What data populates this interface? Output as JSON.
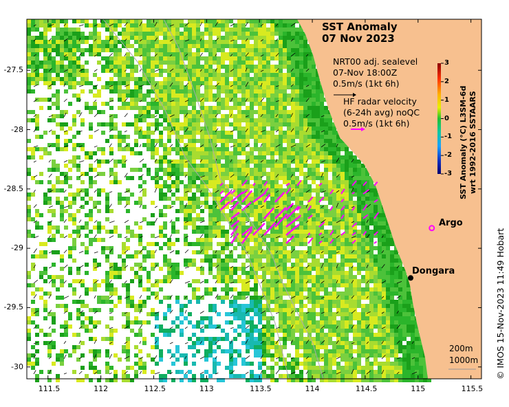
{
  "title": {
    "line1": "SST Anomaly",
    "line2": "07 Nov 2023"
  },
  "legend": {
    "sealevel_label": "NRT00 adj. sealevel",
    "sealevel_time": "07-Nov 18:00Z",
    "sealevel_scale": "0.5m/s (1kt 6h)",
    "radar_label": "HF radar velocity",
    "radar_avg": "(6-24h avg) noQC",
    "radar_scale": "0.5m/s (1kt 6h)"
  },
  "colorbar": {
    "label_line1": "SST Anomaly (°C) L3SM-6d",
    "label_line2": "wrt 1992-2016 SSTAARS",
    "ticks": [
      "3",
      "2",
      "1",
      "0",
      "-1",
      "-2",
      "-3"
    ],
    "min": -3,
    "max": 3
  },
  "axes": {
    "x_ticks": [
      "111.5",
      "112",
      "112.5",
      "113",
      "113.5",
      "114",
      "114.5",
      "115",
      "115.5"
    ],
    "x_values": [
      111.5,
      112,
      112.5,
      113,
      113.5,
      114,
      114.5,
      115,
      115.5
    ],
    "y_ticks": [
      "-27.5",
      "-28",
      "-28.5",
      "-29",
      "-29.5",
      "-30"
    ],
    "y_values": [
      -27.5,
      -28,
      -28.5,
      -29,
      -29.5,
      -30
    ],
    "lon_range": [
      111.3,
      115.6
    ],
    "lat_range": [
      -30.1,
      -27.07
    ]
  },
  "places": {
    "argo": {
      "label": "Argo",
      "lon": 115.13,
      "lat": -28.83
    },
    "dongara": {
      "label": "Dongara",
      "lon": 114.93,
      "lat": -29.25
    }
  },
  "depth_contours": {
    "shallow": "200m",
    "deep": "1000m"
  },
  "credit": "© IMOS 15-Nov-2023 11:49 Hobart",
  "colors": {
    "land": "#f7c08f",
    "radar_arrow": "#ff00ff",
    "argo_marker": "#ff00ff",
    "no_data": "#ffffff"
  }
}
